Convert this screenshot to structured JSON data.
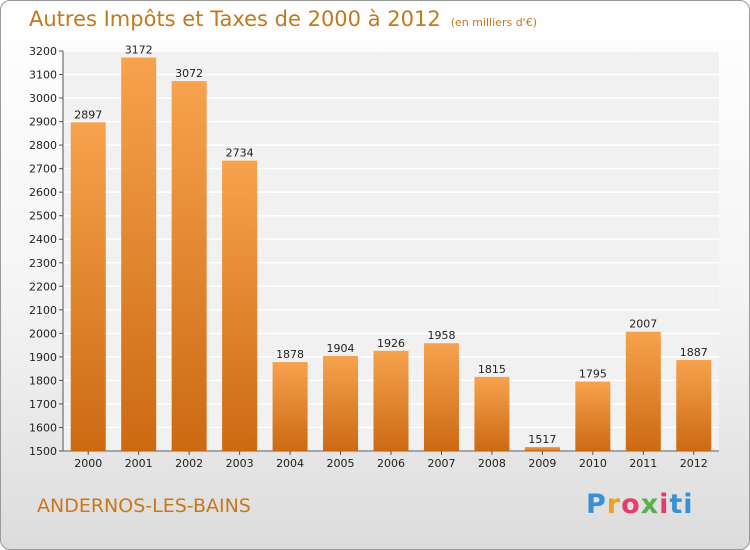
{
  "chart_data": {
    "type": "bar",
    "title": "Autres Impôts et Taxes de 2000 à 2012",
    "subtitle": "(en milliers d'€)",
    "categories": [
      "2000",
      "2001",
      "2002",
      "2003",
      "2004",
      "2005",
      "2006",
      "2007",
      "2008",
      "2009",
      "2010",
      "2011",
      "2012"
    ],
    "values": [
      2897,
      3172,
      3072,
      2734,
      1878,
      1904,
      1926,
      1958,
      1815,
      1517,
      1795,
      2007,
      1887
    ],
    "ylim": [
      1500,
      3200
    ],
    "yticks": [
      1500,
      1600,
      1700,
      1800,
      1900,
      2000,
      2100,
      2200,
      2300,
      2400,
      2500,
      2600,
      2700,
      2800,
      2900,
      3000,
      3100,
      3200
    ],
    "grid": true,
    "bar_color_top": "#f7a24e",
    "bar_color_bottom": "#cc6a12"
  },
  "footer": {
    "city": "ANDERNOS-LES-BAINS",
    "brand": [
      "P",
      "r",
      "o",
      "x",
      "i",
      "t",
      "i"
    ]
  }
}
